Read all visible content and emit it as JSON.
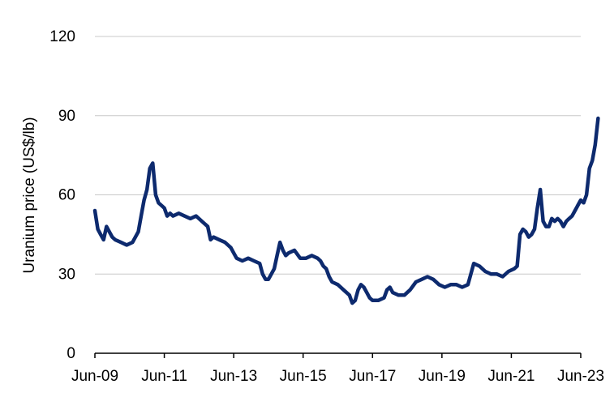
{
  "chart_data": {
    "type": "line",
    "ylabel": "Uranium price (US$/lb)",
    "xlabel": "",
    "ylim": [
      0,
      120
    ],
    "yticks": [
      "0",
      "30",
      "60",
      "90",
      "120"
    ],
    "xticks": [
      {
        "date": "2009-06",
        "label": "Jun-09"
      },
      {
        "date": "2011-06",
        "label": "Jun-11"
      },
      {
        "date": "2013-06",
        "label": "Jun-13"
      },
      {
        "date": "2015-06",
        "label": "Jun-15"
      },
      {
        "date": "2017-06",
        "label": "Jun-17"
      },
      {
        "date": "2019-06",
        "label": "Jun-19"
      },
      {
        "date": "2021-06",
        "label": "Jun-21"
      },
      {
        "date": "2023-06",
        "label": "Jun-23"
      }
    ],
    "xlim": [
      "2009-06",
      "2023-06"
    ],
    "grid": true,
    "series": [
      {
        "color": "#0d2a6e",
        "points": [
          [
            "2009-06",
            54
          ],
          [
            "2009-07",
            47
          ],
          [
            "2009-08",
            45
          ],
          [
            "2009-09",
            43
          ],
          [
            "2009-10",
            48
          ],
          [
            "2009-11",
            46
          ],
          [
            "2009-12",
            44
          ],
          [
            "2010-01",
            43
          ],
          [
            "2010-03",
            42
          ],
          [
            "2010-05",
            41
          ],
          [
            "2010-07",
            42
          ],
          [
            "2010-09",
            46
          ],
          [
            "2010-10",
            52
          ],
          [
            "2010-11",
            58
          ],
          [
            "2010-12",
            62
          ],
          [
            "2011-01",
            70
          ],
          [
            "2011-02",
            72
          ],
          [
            "2011-03",
            60
          ],
          [
            "2011-04",
            57
          ],
          [
            "2011-05",
            56
          ],
          [
            "2011-06",
            55
          ],
          [
            "2011-07",
            52
          ],
          [
            "2011-08",
            53
          ],
          [
            "2011-09",
            52
          ],
          [
            "2011-11",
            53
          ],
          [
            "2012-01",
            52
          ],
          [
            "2012-03",
            51
          ],
          [
            "2012-05",
            52
          ],
          [
            "2012-07",
            50
          ],
          [
            "2012-09",
            48
          ],
          [
            "2012-10",
            43
          ],
          [
            "2012-11",
            44
          ],
          [
            "2013-01",
            43
          ],
          [
            "2013-03",
            42
          ],
          [
            "2013-04",
            41
          ],
          [
            "2013-05",
            40
          ],
          [
            "2013-06",
            38
          ],
          [
            "2013-07",
            36
          ],
          [
            "2013-09",
            35
          ],
          [
            "2013-11",
            36
          ],
          [
            "2014-01",
            35
          ],
          [
            "2014-03",
            34
          ],
          [
            "2014-04",
            30
          ],
          [
            "2014-05",
            28
          ],
          [
            "2014-06",
            28
          ],
          [
            "2014-07",
            30
          ],
          [
            "2014-08",
            32
          ],
          [
            "2014-09",
            37
          ],
          [
            "2014-10",
            42
          ],
          [
            "2014-11",
            39
          ],
          [
            "2014-12",
            37
          ],
          [
            "2015-01",
            38
          ],
          [
            "2015-03",
            39
          ],
          [
            "2015-05",
            36
          ],
          [
            "2015-07",
            36
          ],
          [
            "2015-09",
            37
          ],
          [
            "2015-11",
            36
          ],
          [
            "2015-12",
            35
          ],
          [
            "2016-01",
            33
          ],
          [
            "2016-02",
            32
          ],
          [
            "2016-03",
            29
          ],
          [
            "2016-04",
            27
          ],
          [
            "2016-06",
            26
          ],
          [
            "2016-08",
            24
          ],
          [
            "2016-10",
            22
          ],
          [
            "2016-11",
            19
          ],
          [
            "2016-12",
            20
          ],
          [
            "2017-01",
            24
          ],
          [
            "2017-02",
            26
          ],
          [
            "2017-03",
            25
          ],
          [
            "2017-04",
            23
          ],
          [
            "2017-05",
            21
          ],
          [
            "2017-06",
            20
          ],
          [
            "2017-08",
            20
          ],
          [
            "2017-10",
            21
          ],
          [
            "2017-11",
            24
          ],
          [
            "2017-12",
            25
          ],
          [
            "2018-01",
            23
          ],
          [
            "2018-03",
            22
          ],
          [
            "2018-05",
            22
          ],
          [
            "2018-07",
            24
          ],
          [
            "2018-09",
            27
          ],
          [
            "2018-11",
            28
          ],
          [
            "2019-01",
            29
          ],
          [
            "2019-03",
            28
          ],
          [
            "2019-05",
            26
          ],
          [
            "2019-07",
            25
          ],
          [
            "2019-09",
            26
          ],
          [
            "2019-11",
            26
          ],
          [
            "2020-01",
            25
          ],
          [
            "2020-03",
            26
          ],
          [
            "2020-04",
            30
          ],
          [
            "2020-05",
            34
          ],
          [
            "2020-07",
            33
          ],
          [
            "2020-09",
            31
          ],
          [
            "2020-11",
            30
          ],
          [
            "2021-01",
            30
          ],
          [
            "2021-03",
            29
          ],
          [
            "2021-05",
            31
          ],
          [
            "2021-07",
            32
          ],
          [
            "2021-08",
            33
          ],
          [
            "2021-09",
            45
          ],
          [
            "2021-10",
            47
          ],
          [
            "2021-11",
            46
          ],
          [
            "2021-12",
            44
          ],
          [
            "2022-01",
            45
          ],
          [
            "2022-02",
            47
          ],
          [
            "2022-03",
            55
          ],
          [
            "2022-04",
            62
          ],
          [
            "2022-05",
            50
          ],
          [
            "2022-06",
            48
          ],
          [
            "2022-07",
            48
          ],
          [
            "2022-08",
            51
          ],
          [
            "2022-09",
            50
          ],
          [
            "2022-10",
            51
          ],
          [
            "2022-11",
            50
          ],
          [
            "2022-12",
            48
          ],
          [
            "2023-01",
            50
          ],
          [
            "2023-02",
            51
          ],
          [
            "2023-03",
            52
          ],
          [
            "2023-04",
            54
          ],
          [
            "2023-05",
            56
          ],
          [
            "2023-06",
            58
          ],
          [
            "2023-07",
            57
          ],
          [
            "2023-08",
            60
          ],
          [
            "2023-09",
            70
          ],
          [
            "2023-10",
            73
          ],
          [
            "2023-11",
            79
          ],
          [
            "2023-12",
            89
          ]
        ]
      }
    ]
  }
}
